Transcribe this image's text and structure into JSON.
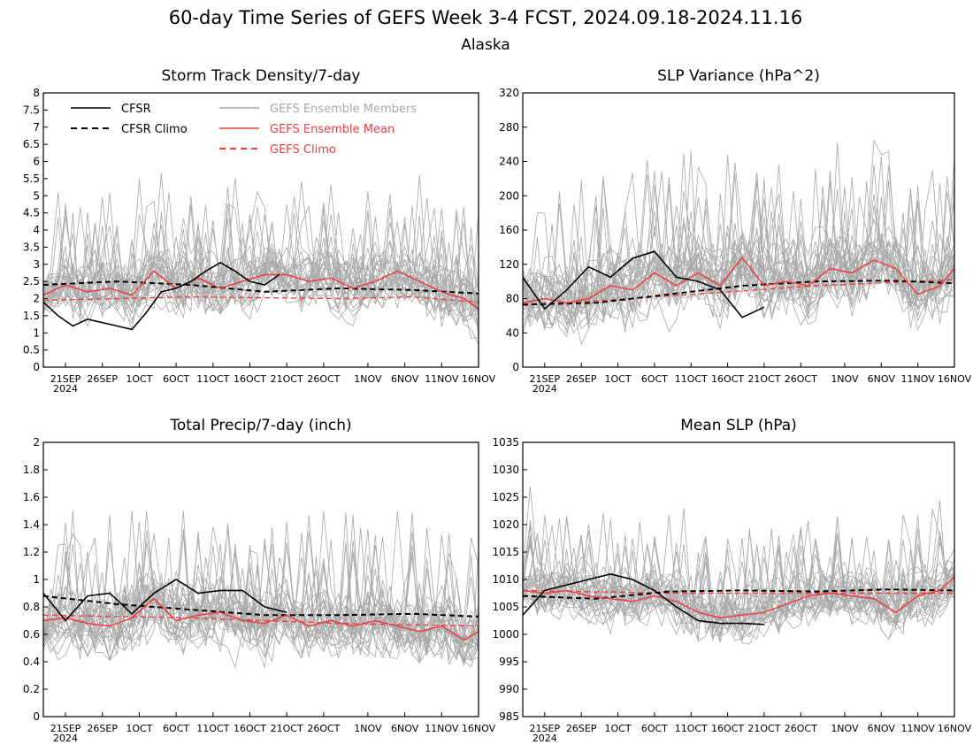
{
  "figure": {
    "title": "60-day Time Series of GEFS Week 3-4 FCST, 2024.09.18-2024.11.16",
    "subtitle": "Alaska"
  },
  "x_axis": {
    "start": "2024-09-18",
    "end": "2024-11-16",
    "tick_labels": [
      "21SEP",
      "26SEP",
      "1OCT",
      "6OCT",
      "11OCT",
      "16OCT",
      "21OCT",
      "26OCT",
      "1NOV",
      "6NOV",
      "11NOV",
      "16NOV"
    ],
    "tick_dates": [
      "2024-09-21",
      "2024-09-26",
      "2024-10-01",
      "2024-10-06",
      "2024-10-11",
      "2024-10-16",
      "2024-10-21",
      "2024-10-26",
      "2024-11-01",
      "2024-11-06",
      "2024-11-11",
      "2024-11-16"
    ],
    "year_label": "2024"
  },
  "legend": [
    {
      "name": "CFSR",
      "color": "#000000",
      "dash": false
    },
    {
      "name": "CFSR Climo",
      "color": "#000000",
      "dash": true
    },
    {
      "name": "GEFS Ensemble Members",
      "color": "#a8a8a8",
      "dash": false
    },
    {
      "name": "GEFS Ensemble Mean",
      "color": "#f03c3c",
      "dash": false
    },
    {
      "name": "GEFS Climo",
      "color": "#f03c3c",
      "dash": true
    }
  ],
  "colors": {
    "cfsr": "#000000",
    "members": "#a8a8a8",
    "gefs": "#f03c3c"
  },
  "chart_data": [
    {
      "type": "line",
      "title": "Storm Track Density/7-day",
      "ylim": [
        0,
        8
      ],
      "yticks": [
        0,
        0.5,
        1,
        1.5,
        2,
        2.5,
        3,
        3.5,
        4,
        4.5,
        5,
        5.5,
        6,
        6.5,
        7,
        7.5,
        8
      ],
      "dates": [
        "2024-09-18",
        "2024-11-16"
      ],
      "ensemble_members": {
        "count": 30,
        "center": 2.2,
        "spread": 0.9,
        "min": 0,
        "max": 6
      },
      "series": [
        {
          "name": "CFSR",
          "x": [
            "2024-09-18",
            "2024-09-20",
            "2024-09-22",
            "2024-09-24",
            "2024-09-26",
            "2024-09-28",
            "2024-09-30",
            "2024-10-02",
            "2024-10-04",
            "2024-10-06",
            "2024-10-08",
            "2024-10-10",
            "2024-10-12",
            "2024-10-14",
            "2024-10-16",
            "2024-10-18",
            "2024-10-20"
          ],
          "y": [
            1.9,
            1.5,
            1.2,
            1.4,
            1.3,
            1.2,
            1.1,
            1.6,
            2.2,
            2.3,
            2.5,
            2.8,
            3.05,
            2.8,
            2.5,
            2.4,
            2.7
          ]
        },
        {
          "name": "CFSR Climo",
          "x": [
            "2024-09-18",
            "2024-09-28",
            "2024-10-08",
            "2024-10-18",
            "2024-10-28",
            "2024-11-07",
            "2024-11-16"
          ],
          "y": [
            2.4,
            2.5,
            2.4,
            2.2,
            2.3,
            2.25,
            2.15
          ]
        },
        {
          "name": "GEFS Ensemble Mean",
          "x": [
            "2024-09-18",
            "2024-09-21",
            "2024-09-24",
            "2024-09-27",
            "2024-09-30",
            "2024-10-03",
            "2024-10-06",
            "2024-10-09",
            "2024-10-12",
            "2024-10-15",
            "2024-10-18",
            "2024-10-21",
            "2024-10-24",
            "2024-10-27",
            "2024-10-30",
            "2024-11-02",
            "2024-11-05",
            "2024-11-08",
            "2024-11-11",
            "2024-11-14",
            "2024-11-16"
          ],
          "y": [
            2.1,
            2.4,
            2.2,
            2.3,
            2.1,
            2.8,
            2.3,
            2.6,
            2.3,
            2.5,
            2.7,
            2.7,
            2.5,
            2.6,
            2.3,
            2.5,
            2.8,
            2.5,
            2.2,
            2.0,
            1.7
          ]
        },
        {
          "name": "GEFS Climo",
          "x": [
            "2024-09-18",
            "2024-10-08",
            "2024-10-28",
            "2024-11-07",
            "2024-11-16"
          ],
          "y": [
            1.95,
            2.05,
            2.0,
            2.05,
            1.9
          ]
        }
      ]
    },
    {
      "type": "line",
      "title": "SLP Variance (hPa^2)",
      "ylim": [
        0,
        320
      ],
      "yticks": [
        0,
        40,
        80,
        120,
        160,
        200,
        240,
        280,
        320
      ],
      "dates": [
        "2024-09-18",
        "2024-11-16"
      ],
      "ensemble_members": {
        "count": 30,
        "center": 95,
        "spread": 45,
        "min": 20,
        "max": 315
      },
      "series": [
        {
          "name": "CFSR",
          "x": [
            "2024-09-18",
            "2024-09-21",
            "2024-09-24",
            "2024-09-27",
            "2024-09-30",
            "2024-10-03",
            "2024-10-06",
            "2024-10-09",
            "2024-10-12",
            "2024-10-15",
            "2024-10-18",
            "2024-10-21"
          ],
          "y": [
            105,
            68,
            90,
            117,
            105,
            127,
            135,
            105,
            100,
            90,
            58,
            70
          ]
        },
        {
          "name": "CFSR Climo",
          "x": [
            "2024-09-18",
            "2024-09-28",
            "2024-10-08",
            "2024-10-18",
            "2024-10-28",
            "2024-11-07",
            "2024-11-16"
          ],
          "y": [
            73,
            75,
            85,
            95,
            100,
            101,
            98
          ]
        },
        {
          "name": "GEFS Ensemble Mean",
          "x": [
            "2024-09-18",
            "2024-09-21",
            "2024-09-24",
            "2024-09-27",
            "2024-09-30",
            "2024-10-03",
            "2024-10-06",
            "2024-10-09",
            "2024-10-12",
            "2024-10-15",
            "2024-10-18",
            "2024-10-21",
            "2024-10-24",
            "2024-10-27",
            "2024-10-30",
            "2024-11-02",
            "2024-11-05",
            "2024-11-08",
            "2024-11-11",
            "2024-11-14",
            "2024-11-16"
          ],
          "y": [
            75,
            80,
            75,
            80,
            95,
            90,
            110,
            95,
            110,
            95,
            128,
            95,
            100,
            95,
            115,
            110,
            125,
            115,
            85,
            95,
            115
          ]
        },
        {
          "name": "GEFS Climo",
          "x": [
            "2024-09-18",
            "2024-10-08",
            "2024-10-28",
            "2024-11-16"
          ],
          "y": [
            72,
            83,
            95,
            102
          ]
        }
      ]
    },
    {
      "type": "line",
      "title": "Total Precip/7-day (inch)",
      "ylim": [
        0,
        2
      ],
      "yticks": [
        0,
        0.2,
        0.4,
        0.6,
        0.8,
        1,
        1.2,
        1.4,
        1.6,
        1.8,
        2
      ],
      "dates": [
        "2024-09-18",
        "2024-11-16"
      ],
      "ensemble_members": {
        "count": 30,
        "center": 0.7,
        "spread": 0.25,
        "min": 0.15,
        "max": 1.5
      },
      "series": [
        {
          "name": "CFSR",
          "x": [
            "2024-09-18",
            "2024-09-21",
            "2024-09-24",
            "2024-09-27",
            "2024-09-30",
            "2024-10-03",
            "2024-10-06",
            "2024-10-09",
            "2024-10-12",
            "2024-10-15",
            "2024-10-18",
            "2024-10-21"
          ],
          "y": [
            0.9,
            0.7,
            0.88,
            0.9,
            0.75,
            0.9,
            1.0,
            0.9,
            0.92,
            0.92,
            0.8,
            0.76
          ]
        },
        {
          "name": "CFSR Climo",
          "x": [
            "2024-09-18",
            "2024-09-28",
            "2024-10-08",
            "2024-10-18",
            "2024-10-28",
            "2024-11-07",
            "2024-11-16"
          ],
          "y": [
            0.88,
            0.82,
            0.78,
            0.74,
            0.74,
            0.75,
            0.73
          ]
        },
        {
          "name": "GEFS Ensemble Mean",
          "x": [
            "2024-09-18",
            "2024-09-21",
            "2024-09-24",
            "2024-09-27",
            "2024-09-30",
            "2024-10-03",
            "2024-10-06",
            "2024-10-09",
            "2024-10-12",
            "2024-10-15",
            "2024-10-18",
            "2024-10-21",
            "2024-10-24",
            "2024-10-27",
            "2024-10-30",
            "2024-11-02",
            "2024-11-05",
            "2024-11-08",
            "2024-11-11",
            "2024-11-14",
            "2024-11-16"
          ],
          "y": [
            0.7,
            0.72,
            0.68,
            0.66,
            0.72,
            0.86,
            0.7,
            0.74,
            0.76,
            0.7,
            0.68,
            0.74,
            0.66,
            0.7,
            0.66,
            0.7,
            0.66,
            0.62,
            0.66,
            0.56,
            0.62
          ]
        },
        {
          "name": "GEFS Climo",
          "x": [
            "2024-09-18",
            "2024-10-08",
            "2024-10-28",
            "2024-11-16"
          ],
          "y": [
            0.74,
            0.72,
            0.68,
            0.66
          ]
        }
      ]
    },
    {
      "type": "line",
      "title": "Mean SLP (hPa)",
      "ylim": [
        985,
        1035
      ],
      "yticks": [
        985,
        990,
        995,
        1000,
        1005,
        1010,
        1015,
        1020,
        1025,
        1030,
        1035
      ],
      "dates": [
        "2024-09-18",
        "2024-11-16"
      ],
      "ensemble_members": {
        "count": 30,
        "center": 1007,
        "spread": 5,
        "min": 988,
        "max": 1029
      },
      "series": [
        {
          "name": "CFSR",
          "x": [
            "2024-09-18",
            "2024-09-21",
            "2024-09-24",
            "2024-09-27",
            "2024-09-30",
            "2024-10-03",
            "2024-10-06",
            "2024-10-09",
            "2024-10-12",
            "2024-10-15",
            "2024-10-18",
            "2024-10-21"
          ],
          "y": [
            1003.5,
            1008,
            1009,
            1010,
            1011,
            1010,
            1008,
            1005,
            1002.5,
            1002,
            1002,
            1001.8
          ]
        },
        {
          "name": "CFSR Climo",
          "x": [
            "2024-09-18",
            "2024-09-28",
            "2024-10-08",
            "2024-10-18",
            "2024-10-28",
            "2024-11-07",
            "2024-11-16"
          ],
          "y": [
            1007,
            1006.5,
            1007.8,
            1008,
            1007.8,
            1008.2,
            1008
          ]
        },
        {
          "name": "GEFS Ensemble Mean",
          "x": [
            "2024-09-18",
            "2024-09-21",
            "2024-09-24",
            "2024-09-27",
            "2024-09-30",
            "2024-10-03",
            "2024-10-06",
            "2024-10-09",
            "2024-10-12",
            "2024-10-15",
            "2024-10-18",
            "2024-10-21",
            "2024-10-24",
            "2024-10-27",
            "2024-10-30",
            "2024-11-02",
            "2024-11-05",
            "2024-11-08",
            "2024-11-11",
            "2024-11-14",
            "2024-11-16"
          ],
          "y": [
            1008,
            1007.5,
            1008,
            1007,
            1006.5,
            1006,
            1007,
            1006,
            1004,
            1003,
            1003.5,
            1004,
            1005.5,
            1007,
            1007.5,
            1007,
            1006.5,
            1004,
            1007,
            1008,
            1010.5
          ]
        },
        {
          "name": "GEFS Climo",
          "x": [
            "2024-09-18",
            "2024-10-08",
            "2024-10-28",
            "2024-11-16"
          ],
          "y": [
            1008,
            1007.5,
            1007.5,
            1007.5
          ]
        }
      ]
    }
  ]
}
